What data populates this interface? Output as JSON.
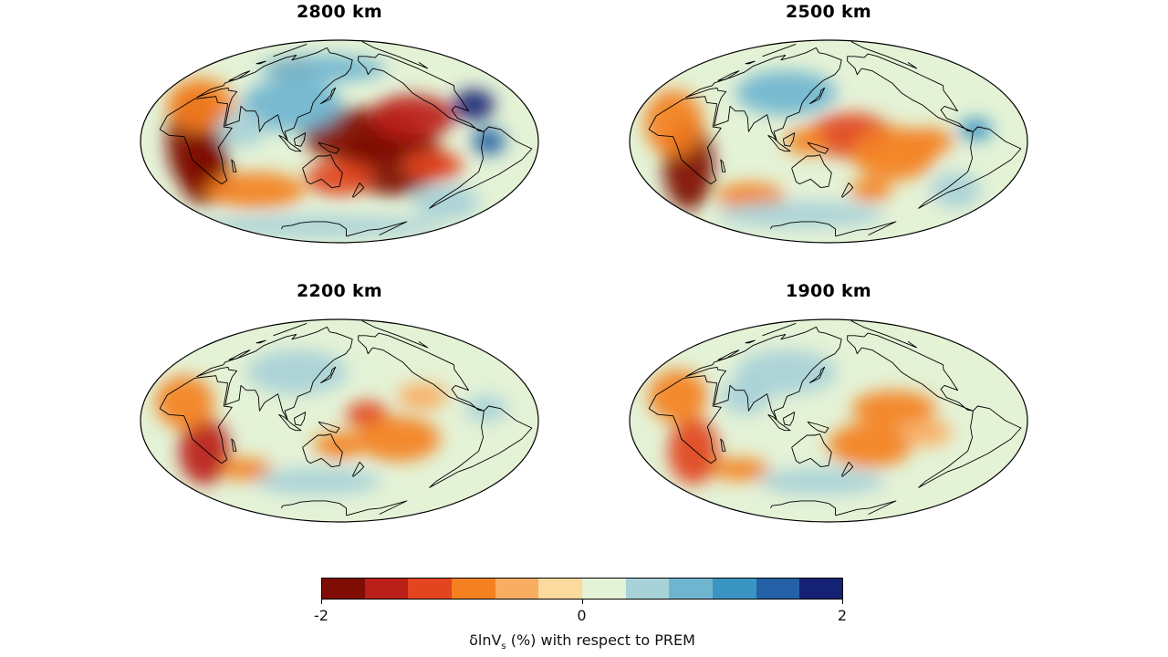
{
  "panels": [
    {
      "title": "2800 km",
      "anomalies": [
        {
          "lon": 20,
          "lat": 0,
          "value": -1.8,
          "rx": 0.07,
          "ry": 0.22
        },
        {
          "lon": 15,
          "lat": -25,
          "value": -1.9,
          "rx": 0.06,
          "ry": 0.15
        },
        {
          "lon": 5,
          "lat": 30,
          "value": -1.0,
          "rx": 0.08,
          "ry": 0.12
        },
        {
          "lon": 50,
          "lat": -40,
          "value": -1.0,
          "rx": 0.12,
          "ry": 0.08
        },
        {
          "lon": 170,
          "lat": 5,
          "value": -1.9,
          "rx": 0.14,
          "ry": 0.12
        },
        {
          "lon": 200,
          "lat": -15,
          "value": -1.9,
          "rx": 0.12,
          "ry": 0.16
        },
        {
          "lon": 220,
          "lat": 20,
          "value": -1.6,
          "rx": 0.1,
          "ry": 0.1
        },
        {
          "lon": 150,
          "lat": -30,
          "value": -1.2,
          "rx": 0.08,
          "ry": 0.08
        },
        {
          "lon": 240,
          "lat": -20,
          "value": -1.2,
          "rx": 0.07,
          "ry": 0.07
        },
        {
          "lon": 60,
          "lat": 60,
          "value": -0.8,
          "rx": 0.05,
          "ry": 0.05
        },
        {
          "lon": 100,
          "lat": 30,
          "value": 0.8,
          "rx": 0.12,
          "ry": 0.12
        },
        {
          "lon": 290,
          "lat": 30,
          "value": 1.8,
          "rx": 0.05,
          "ry": 0.07
        },
        {
          "lon": 285,
          "lat": 0,
          "value": 1.5,
          "rx": 0.04,
          "ry": 0.06
        },
        {
          "lon": 120,
          "lat": 60,
          "value": 0.7,
          "rx": 0.15,
          "ry": 0.06
        },
        {
          "lon": 90,
          "lat": -70,
          "value": 0.6,
          "rx": 0.3,
          "ry": 0.05
        },
        {
          "lon": 300,
          "lat": -50,
          "value": 0.6,
          "rx": 0.08,
          "ry": 0.08
        },
        {
          "lon": 60,
          "lat": 10,
          "value": 0.6,
          "rx": 0.06,
          "ry": 0.08
        }
      ]
    },
    {
      "title": "2500 km",
      "anomalies": [
        {
          "lon": 15,
          "lat": -20,
          "value": -1.7,
          "rx": 0.06,
          "ry": 0.2
        },
        {
          "lon": 5,
          "lat": 15,
          "value": -0.9,
          "rx": 0.07,
          "ry": 0.15
        },
        {
          "lon": 170,
          "lat": 5,
          "value": -1.1,
          "rx": 0.1,
          "ry": 0.1
        },
        {
          "lon": 210,
          "lat": -10,
          "value": -1.0,
          "rx": 0.1,
          "ry": 0.12
        },
        {
          "lon": 240,
          "lat": 0,
          "value": -0.9,
          "rx": 0.06,
          "ry": 0.06
        },
        {
          "lon": 200,
          "lat": -40,
          "value": -0.8,
          "rx": 0.05,
          "ry": 0.05
        },
        {
          "lon": 50,
          "lat": -45,
          "value": -0.8,
          "rx": 0.08,
          "ry": 0.06
        },
        {
          "lon": 130,
          "lat": 0,
          "value": -0.8,
          "rx": 0.05,
          "ry": 0.06
        },
        {
          "lon": 100,
          "lat": 40,
          "value": 0.7,
          "rx": 0.12,
          "ry": 0.1
        },
        {
          "lon": 285,
          "lat": 10,
          "value": 1.2,
          "rx": 0.04,
          "ry": 0.05
        },
        {
          "lon": 100,
          "lat": -60,
          "value": 0.6,
          "rx": 0.2,
          "ry": 0.06
        },
        {
          "lon": 300,
          "lat": -40,
          "value": 0.5,
          "rx": 0.06,
          "ry": 0.08
        }
      ]
    },
    {
      "title": "2200 km",
      "anomalies": [
        {
          "lon": 15,
          "lat": -25,
          "value": -1.5,
          "rx": 0.06,
          "ry": 0.15
        },
        {
          "lon": 5,
          "lat": 15,
          "value": -0.8,
          "rx": 0.07,
          "ry": 0.12
        },
        {
          "lon": 40,
          "lat": -40,
          "value": -1.0,
          "rx": 0.06,
          "ry": 0.05
        },
        {
          "lon": 175,
          "lat": 5,
          "value": -1.3,
          "rx": 0.05,
          "ry": 0.06
        },
        {
          "lon": 205,
          "lat": -15,
          "value": -0.9,
          "rx": 0.1,
          "ry": 0.1
        },
        {
          "lon": 150,
          "lat": -20,
          "value": -0.7,
          "rx": 0.06,
          "ry": 0.06
        },
        {
          "lon": 230,
          "lat": 20,
          "value": -0.6,
          "rx": 0.06,
          "ry": 0.06
        },
        {
          "lon": 100,
          "lat": 40,
          "value": 0.6,
          "rx": 0.12,
          "ry": 0.1
        },
        {
          "lon": 120,
          "lat": -50,
          "value": 0.6,
          "rx": 0.15,
          "ry": 0.06
        },
        {
          "lon": 285,
          "lat": 10,
          "value": 0.6,
          "rx": 0.05,
          "ry": 0.06
        }
      ]
    },
    {
      "title": "1900 km",
      "anomalies": [
        {
          "lon": 15,
          "lat": -25,
          "value": -1.3,
          "rx": 0.06,
          "ry": 0.15
        },
        {
          "lon": 45,
          "lat": -40,
          "value": -0.9,
          "rx": 0.07,
          "ry": 0.05
        },
        {
          "lon": 5,
          "lat": 20,
          "value": -0.7,
          "rx": 0.07,
          "ry": 0.12
        },
        {
          "lon": 190,
          "lat": -20,
          "value": -1.0,
          "rx": 0.1,
          "ry": 0.1
        },
        {
          "lon": 210,
          "lat": 10,
          "value": -0.7,
          "rx": 0.1,
          "ry": 0.08
        },
        {
          "lon": 240,
          "lat": -10,
          "value": -0.6,
          "rx": 0.06,
          "ry": 0.06
        },
        {
          "lon": 100,
          "lat": 40,
          "value": 0.6,
          "rx": 0.12,
          "ry": 0.1
        },
        {
          "lon": 140,
          "lat": -50,
          "value": 0.6,
          "rx": 0.15,
          "ry": 0.06
        },
        {
          "lon": 70,
          "lat": 20,
          "value": 0.4,
          "rx": 0.06,
          "ry": 0.08
        }
      ]
    }
  ],
  "colorbar": {
    "colors": [
      "#7f0d06",
      "#bb1f1a",
      "#e24520",
      "#f4801f",
      "#f8ad62",
      "#fcd99c",
      "#e4f2d6",
      "#a8d1d8",
      "#70b5d0",
      "#3a95c2",
      "#2461a6",
      "#152274"
    ],
    "ticks": [
      {
        "value": -2,
        "label": "-2"
      },
      {
        "value": 0,
        "label": "0"
      },
      {
        "value": 2,
        "label": "2"
      }
    ],
    "range": [
      -2,
      2
    ],
    "label_main": "δlnV",
    "label_sub": "s",
    "label_rest": " (%) with respect to PREM"
  }
}
